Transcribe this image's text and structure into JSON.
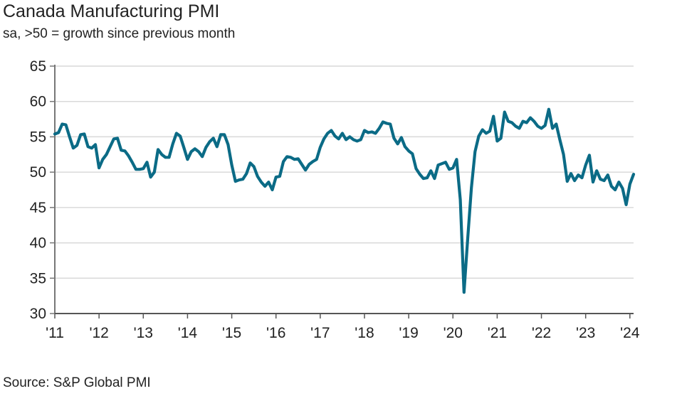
{
  "chart_data": {
    "type": "line",
    "title": "Canada Manufacturing PMI",
    "subtitle": "sa, >50 = growth since previous month",
    "source": "Source: S&P Global PMI",
    "xlabel": "",
    "ylabel": "",
    "ylim": [
      30,
      65
    ],
    "yticks": [
      30,
      35,
      40,
      45,
      50,
      55,
      60,
      65
    ],
    "xtick_labels": [
      "'11",
      "'12",
      "'13",
      "'14",
      "'15",
      "'16",
      "'17",
      "'18",
      "'19",
      "'20",
      "'21",
      "'22",
      "'23",
      "'24"
    ],
    "x_start": "2011-01",
    "x_end": "2024-02",
    "frequency": "monthly",
    "grid": true,
    "line_color": "#0b6b86",
    "values": [
      55.4,
      55.6,
      56.8,
      56.7,
      55.0,
      53.4,
      53.8,
      55.3,
      55.4,
      53.6,
      53.4,
      53.9,
      50.6,
      51.8,
      52.5,
      53.6,
      54.7,
      54.8,
      53.1,
      53.0,
      52.3,
      51.4,
      50.4,
      50.4,
      50.5,
      51.4,
      49.3,
      50.0,
      53.2,
      52.5,
      52.1,
      52.1,
      54.0,
      55.5,
      55.1,
      53.5,
      51.8,
      52.9,
      53.3,
      52.9,
      52.2,
      53.5,
      54.3,
      54.8,
      53.6,
      55.3,
      55.3,
      53.9,
      51.0,
      48.7,
      48.9,
      49.0,
      49.8,
      51.3,
      50.8,
      49.4,
      48.6,
      48.0,
      48.6,
      47.5,
      49.3,
      49.4,
      51.5,
      52.2,
      52.1,
      51.8,
      51.9,
      51.1,
      50.3,
      51.1,
      51.5,
      51.8,
      53.5,
      54.7,
      55.5,
      55.9,
      55.1,
      54.7,
      55.5,
      54.6,
      55.0,
      54.6,
      54.4,
      54.6,
      55.9,
      55.6,
      55.7,
      55.5,
      56.2,
      57.1,
      56.9,
      56.8,
      54.8,
      54.0,
      54.9,
      53.6,
      53.0,
      52.6,
      50.5,
      49.7,
      49.1,
      49.2,
      50.2,
      49.1,
      51.0,
      51.2,
      51.4,
      50.4,
      50.6,
      51.8,
      46.1,
      33.0,
      40.6,
      47.8,
      52.9,
      55.1,
      56.0,
      55.5,
      55.8,
      57.9,
      54.4,
      54.8,
      58.5,
      57.2,
      57.0,
      56.5,
      56.2,
      57.2,
      57.0,
      57.7,
      57.2,
      56.5,
      56.2,
      56.6,
      58.9,
      56.2,
      56.8,
      54.6,
      52.5,
      48.7,
      49.8,
      48.8,
      49.6,
      49.2,
      51.0,
      52.4,
      48.6,
      50.2,
      49.0,
      48.8,
      49.6,
      48.0,
      47.5,
      48.6,
      47.7,
      45.4,
      48.3,
      49.7
    ]
  }
}
